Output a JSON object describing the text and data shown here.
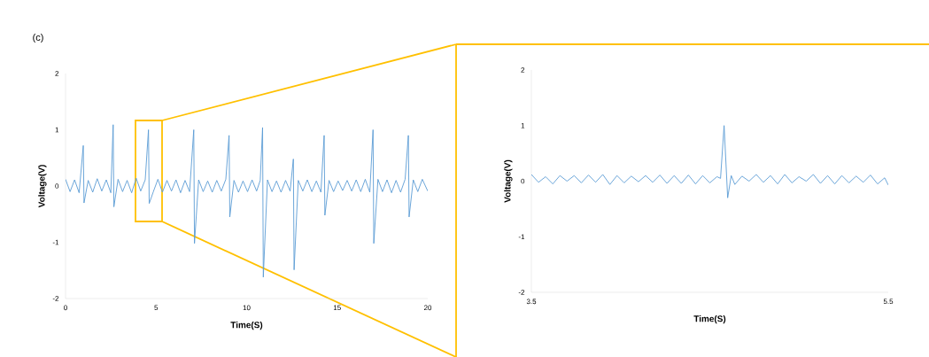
{
  "chart_data": [
    {
      "type": "line",
      "title": "(c)",
      "xlabel": "Time(S)",
      "ylabel": "Voltage(V)",
      "xlim": [
        0,
        20
      ],
      "xticks": [
        0,
        5,
        10,
        15,
        20
      ],
      "ylim": [
        -2,
        2
      ],
      "yticks": [
        -2,
        -1,
        0,
        1,
        2
      ],
      "grid": false,
      "series": [
        {
          "color": "#5b9bd5",
          "x": [
            0,
            0.25,
            0.5,
            0.75,
            0.98,
            1.02,
            1.25,
            1.5,
            1.75,
            2.0,
            2.25,
            2.5,
            2.63,
            2.67,
            2.9,
            3.15,
            3.4,
            3.65,
            3.9,
            4.15,
            4.4,
            4.58,
            4.62,
            4.85,
            5.1,
            5.35,
            5.6,
            5.85,
            6.1,
            6.35,
            6.6,
            6.85,
            7.08,
            7.12,
            7.35,
            7.6,
            7.85,
            8.1,
            8.35,
            8.6,
            8.85,
            9.03,
            9.07,
            9.3,
            9.55,
            9.8,
            10.05,
            10.3,
            10.55,
            10.75,
            10.88,
            10.92,
            11.15,
            11.4,
            11.65,
            11.9,
            12.15,
            12.4,
            12.58,
            12.62,
            12.85,
            13.1,
            13.35,
            13.6,
            13.85,
            14.1,
            14.28,
            14.32,
            14.55,
            14.8,
            15.05,
            15.3,
            15.55,
            15.8,
            16.05,
            16.3,
            16.55,
            16.8,
            16.98,
            17.02,
            17.25,
            17.5,
            17.75,
            18.0,
            18.25,
            18.5,
            18.75,
            18.93,
            18.97,
            19.2,
            19.45,
            19.7,
            20
          ],
          "values": [
            0.12,
            -0.1,
            0.11,
            -0.12,
            0.72,
            -0.3,
            0.1,
            -0.11,
            0.13,
            -0.09,
            0.11,
            -0.12,
            1.09,
            -0.37,
            0.12,
            -0.1,
            0.1,
            -0.12,
            0.14,
            -0.09,
            0.11,
            1.0,
            -0.31,
            -0.1,
            0.12,
            -0.11,
            0.1,
            -0.09,
            0.11,
            -0.12,
            0.1,
            -0.1,
            1.0,
            -1.02,
            0.11,
            -0.1,
            0.09,
            -0.11,
            0.1,
            -0.09,
            0.12,
            0.9,
            -0.55,
            0.1,
            -0.11,
            0.09,
            -0.1,
            0.11,
            -0.09,
            0.1,
            1.04,
            -1.62,
            0.11,
            -0.1,
            0.09,
            -0.11,
            0.1,
            -0.09,
            0.48,
            -1.49,
            0.1,
            -0.09,
            0.11,
            -0.1,
            0.09,
            -0.11,
            0.9,
            -0.52,
            0.1,
            -0.1,
            0.09,
            -0.08,
            0.1,
            -0.09,
            0.11,
            -0.1,
            0.12,
            -0.11,
            1.0,
            -1.02,
            0.12,
            -0.1,
            0.11,
            -0.12,
            0.1,
            -0.11,
            0.12,
            0.9,
            -0.55,
            0.11,
            -0.1,
            0.12,
            -0.09
          ]
        }
      ]
    },
    {
      "type": "line",
      "xlabel": "Time(S)",
      "ylabel": "Voltage(V)",
      "xlim": [
        3.5,
        5.5
      ],
      "xticks": [
        3.5,
        5.5
      ],
      "ylim": [
        -2,
        2
      ],
      "yticks": [
        -2,
        -1,
        0,
        1,
        2
      ],
      "grid": false,
      "series": [
        {
          "color": "#5b9bd5",
          "x": [
            3.5,
            3.54,
            3.58,
            3.62,
            3.66,
            3.7,
            3.74,
            3.78,
            3.82,
            3.86,
            3.9,
            3.94,
            3.98,
            4.02,
            4.06,
            4.1,
            4.14,
            4.18,
            4.22,
            4.26,
            4.3,
            4.34,
            4.38,
            4.42,
            4.46,
            4.5,
            4.54,
            4.56,
            4.58,
            4.6,
            4.62,
            4.64,
            4.68,
            4.72,
            4.76,
            4.8,
            4.84,
            4.88,
            4.92,
            4.96,
            5.0,
            5.04,
            5.08,
            5.12,
            5.16,
            5.2,
            5.24,
            5.28,
            5.32,
            5.36,
            5.4,
            5.44,
            5.48,
            5.5
          ],
          "values": [
            0.12,
            -0.02,
            0.08,
            -0.05,
            0.1,
            0.0,
            0.1,
            -0.03,
            0.11,
            -0.02,
            0.12,
            -0.06,
            0.1,
            -0.03,
            0.09,
            -0.01,
            0.1,
            -0.02,
            0.11,
            -0.04,
            0.1,
            -0.04,
            0.11,
            -0.05,
            0.1,
            -0.03,
            0.08,
            0.05,
            1.0,
            -0.3,
            0.1,
            -0.06,
            0.09,
            0.0,
            0.12,
            -0.02,
            0.1,
            -0.05,
            0.12,
            -0.03,
            0.08,
            0.0,
            0.12,
            -0.04,
            0.1,
            -0.05,
            0.1,
            -0.03,
            0.09,
            -0.02,
            0.11,
            -0.05,
            0.06,
            -0.07
          ]
        }
      ]
    }
  ]
}
